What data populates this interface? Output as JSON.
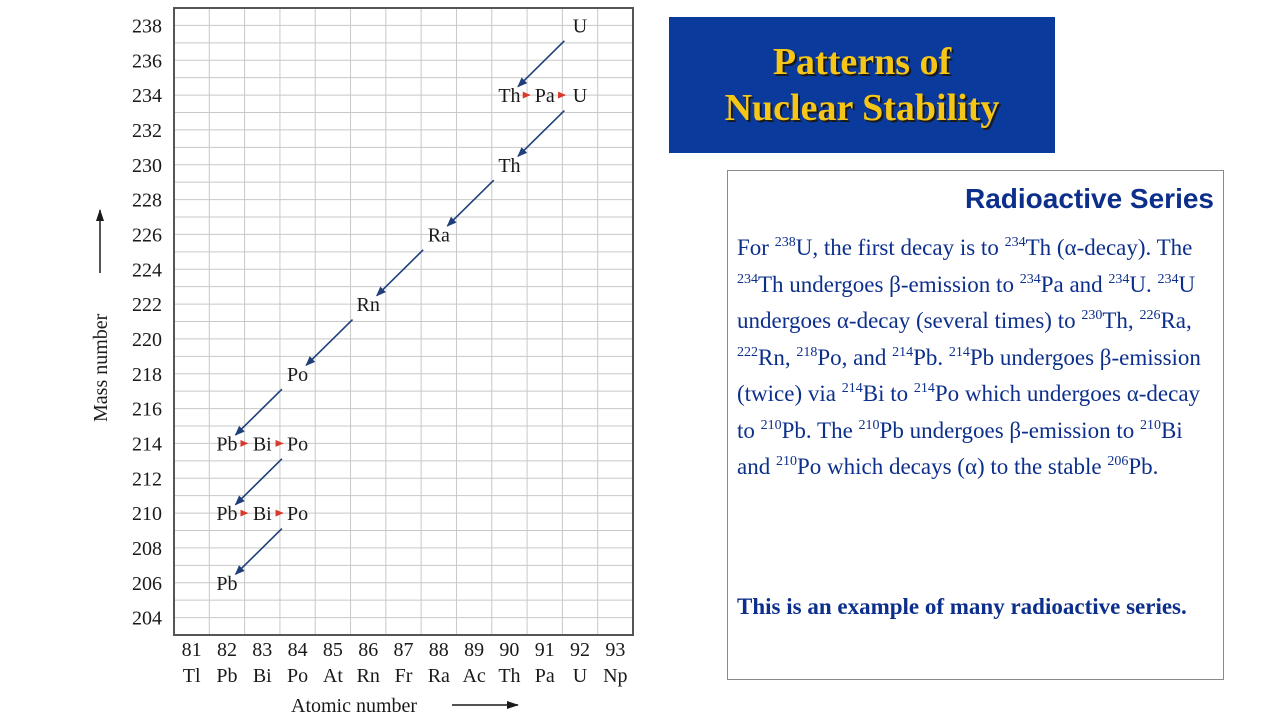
{
  "slide": {
    "title_line1": "Patterns of",
    "title_line2": "Nuclear Stability",
    "box_heading": "Radioactive Series",
    "box_footer": "This is an example of many radioactive series."
  },
  "paragraph": [
    {
      "t": "For "
    },
    {
      "sup": "238"
    },
    {
      "t": "U, the first decay is to "
    },
    {
      "sup": "234"
    },
    {
      "t": "Th (α-decay).  The "
    },
    {
      "sup": "234"
    },
    {
      "t": "Th undergoes β-emission to "
    },
    {
      "sup": "234"
    },
    {
      "t": "Pa and "
    },
    {
      "sup": "234"
    },
    {
      "t": "U.  "
    },
    {
      "sup": "234"
    },
    {
      "t": "U undergoes α-decay (several times) to "
    },
    {
      "sup": "230"
    },
    {
      "t": "Th, "
    },
    {
      "sup": "226"
    },
    {
      "t": "Ra, "
    },
    {
      "sup": "222"
    },
    {
      "t": "Rn, "
    },
    {
      "sup": "218"
    },
    {
      "t": "Po, and "
    },
    {
      "sup": "214"
    },
    {
      "t": "Pb.  "
    },
    {
      "sup": "214"
    },
    {
      "t": "Pb undergoes β-emission (twice) via "
    },
    {
      "sup": "214"
    },
    {
      "t": "Bi to "
    },
    {
      "sup": "214"
    },
    {
      "t": "Po which undergoes α-decay to "
    },
    {
      "sup": "210"
    },
    {
      "t": "Pb.  The "
    },
    {
      "sup": "210"
    },
    {
      "t": "Pb undergoes β-emission to "
    },
    {
      "sup": "210"
    },
    {
      "t": "Bi and "
    },
    {
      "sup": "210"
    },
    {
      "t": "Po which decays (α) to the stable "
    },
    {
      "sup": "206"
    },
    {
      "t": "Pb."
    }
  ],
  "chart_data": {
    "type": "decay-series",
    "xlabel": "Atomic number",
    "ylabel": "Mass number",
    "x_ticks": [
      81,
      82,
      83,
      84,
      85,
      86,
      87,
      88,
      89,
      90,
      91,
      92,
      93
    ],
    "x_symbols": [
      "Tl",
      "Pb",
      "Bi",
      "Po",
      "At",
      "Rn",
      "Fr",
      "Ra",
      "Ac",
      "Th",
      "Pa",
      "U",
      "Np"
    ],
    "y_ticks": [
      204,
      206,
      208,
      210,
      212,
      214,
      216,
      218,
      220,
      222,
      224,
      226,
      228,
      230,
      232,
      234,
      236,
      238
    ],
    "xlim": [
      80.5,
      93.5
    ],
    "ylim": [
      203,
      239
    ],
    "grid": true,
    "nuclides": [
      {
        "label": "U",
        "z": 92,
        "a": 238
      },
      {
        "label": "Th",
        "z": 90,
        "a": 234
      },
      {
        "label": "Pa",
        "z": 91,
        "a": 234
      },
      {
        "label": "U",
        "z": 92,
        "a": 234
      },
      {
        "label": "Th",
        "z": 90,
        "a": 230
      },
      {
        "label": "Ra",
        "z": 88,
        "a": 226
      },
      {
        "label": "Rn",
        "z": 86,
        "a": 222
      },
      {
        "label": "Po",
        "z": 84,
        "a": 218
      },
      {
        "label": "Pb",
        "z": 82,
        "a": 214
      },
      {
        "label": "Bi",
        "z": 83,
        "a": 214
      },
      {
        "label": "Po",
        "z": 84,
        "a": 214
      },
      {
        "label": "Pb",
        "z": 82,
        "a": 210
      },
      {
        "label": "Bi",
        "z": 83,
        "a": 210
      },
      {
        "label": "Po",
        "z": 84,
        "a": 210
      },
      {
        "label": "Pb",
        "z": 82,
        "a": 206
      }
    ],
    "decays": [
      {
        "type": "alpha",
        "from": [
          92,
          238
        ],
        "to": [
          90,
          234
        ]
      },
      {
        "type": "beta",
        "from": [
          90,
          234
        ],
        "to": [
          91,
          234
        ]
      },
      {
        "type": "beta",
        "from": [
          91,
          234
        ],
        "to": [
          92,
          234
        ]
      },
      {
        "type": "alpha",
        "from": [
          92,
          234
        ],
        "to": [
          90,
          230
        ]
      },
      {
        "type": "alpha",
        "from": [
          90,
          230
        ],
        "to": [
          88,
          226
        ]
      },
      {
        "type": "alpha",
        "from": [
          88,
          226
        ],
        "to": [
          86,
          222
        ]
      },
      {
        "type": "alpha",
        "from": [
          86,
          222
        ],
        "to": [
          84,
          218
        ]
      },
      {
        "type": "alpha",
        "from": [
          84,
          218
        ],
        "to": [
          82,
          214
        ]
      },
      {
        "type": "beta",
        "from": [
          82,
          214
        ],
        "to": [
          83,
          214
        ]
      },
      {
        "type": "beta",
        "from": [
          83,
          214
        ],
        "to": [
          84,
          214
        ]
      },
      {
        "type": "alpha",
        "from": [
          84,
          214
        ],
        "to": [
          82,
          210
        ]
      },
      {
        "type": "beta",
        "from": [
          82,
          210
        ],
        "to": [
          83,
          210
        ]
      },
      {
        "type": "beta",
        "from": [
          83,
          210
        ],
        "to": [
          84,
          210
        ]
      },
      {
        "type": "alpha",
        "from": [
          84,
          210
        ],
        "to": [
          82,
          206
        ]
      }
    ],
    "colors": {
      "alpha_arrow": "#1f3f7a",
      "beta_arrow": "#d93a2b",
      "grid": "#c8c8c8",
      "frame": "#555555"
    }
  }
}
